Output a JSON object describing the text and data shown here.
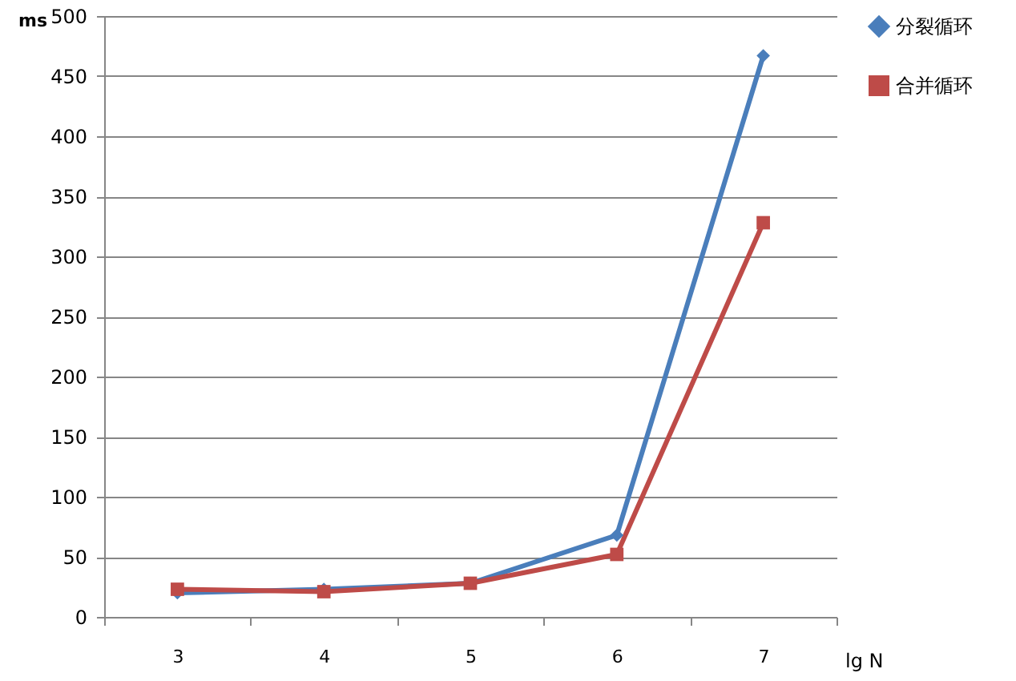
{
  "chart_data": {
    "type": "line",
    "ylabel": "ms",
    "xlabel": "lg N",
    "categories": [
      "3",
      "4",
      "5",
      "6",
      "7"
    ],
    "series": [
      {
        "name": "分裂循环",
        "color": "#4a7ebb",
        "marker": "diamond",
        "values": [
          20,
          23,
          28,
          68,
          467
        ]
      },
      {
        "name": "合并循环",
        "color": "#be4b48",
        "marker": "square",
        "values": [
          23,
          21,
          28,
          52,
          328
        ]
      }
    ],
    "ylim": [
      0,
      500
    ],
    "yticks": [
      0,
      50,
      100,
      150,
      200,
      250,
      300,
      350,
      400,
      450,
      500
    ],
    "grid": "y",
    "legend": "right",
    "line_style": "solid"
  }
}
